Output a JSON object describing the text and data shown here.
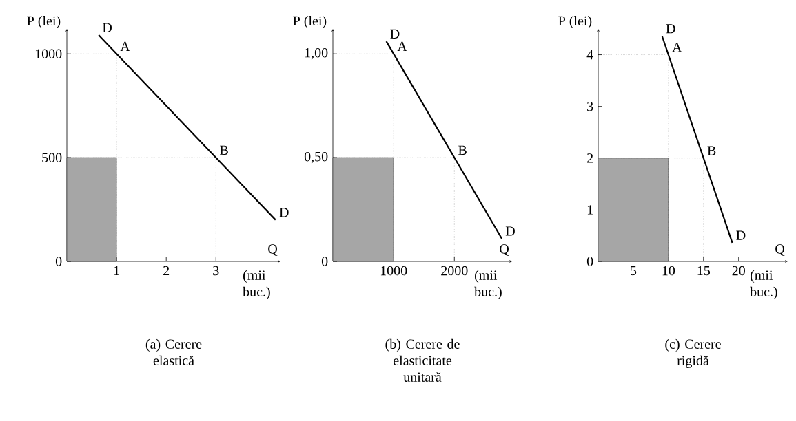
{
  "chart_data": [
    {
      "type": "line",
      "title": "(a) Cerere elastică",
      "xlabel": "(mii buc.)",
      "ylabel": "P (lei)",
      "xlim": [
        0,
        4.3
      ],
      "ylim": [
        0,
        1120
      ],
      "xticks": [
        1,
        2,
        3
      ],
      "yticks": [
        0,
        500,
        1000
      ],
      "grid": false,
      "marker": "none",
      "series": [
        {
          "type": "area",
          "color": "#a6a6a6",
          "x": [
            0,
            1
          ],
          "values": [
            500,
            500
          ]
        },
        {
          "color": "#000000",
          "line_style": "dotted",
          "x": [
            0,
            1,
            1
          ],
          "values": [
            1000,
            1000,
            0
          ]
        },
        {
          "color": "#000000",
          "line_style": "dotted",
          "x": [
            0,
            3,
            3
          ],
          "values": [
            500,
            500,
            0
          ]
        },
        {
          "color": "#000000",
          "line_style": "solid",
          "x": [
            0.64,
            4.2
          ],
          "values": [
            1090,
            200
          ]
        }
      ],
      "annotations": [
        {
          "text": "D",
          "x": 0.64,
          "y": 1090
        },
        {
          "text": "A",
          "x": 1,
          "y": 1000
        },
        {
          "text": "B",
          "x": 3,
          "y": 500
        },
        {
          "text": "D",
          "x": 4.2,
          "y": 200
        },
        "Q"
      ]
    },
    {
      "type": "line",
      "title": "(b) Cerere de elasticitate unitară",
      "xlabel": "(mii buc.)",
      "ylabel": "P (lei)",
      "xlim": [
        0,
        2950
      ],
      "ylim": [
        0,
        1.12
      ],
      "xticks": [
        1000,
        2000
      ],
      "yticks": [
        0,
        {
          "value": 0.5,
          "label": "0,50"
        },
        {
          "value": 1,
          "label": "1,00"
        }
      ],
      "grid": false,
      "marker": "none",
      "series": [
        {
          "type": "area",
          "color": "#a6a6a6",
          "x": [
            0,
            1000
          ],
          "values": [
            0.5,
            0.5
          ]
        },
        {
          "color": "#000000",
          "line_style": "dotted",
          "x": [
            0,
            1000,
            1000
          ],
          "values": [
            1,
            1,
            0
          ]
        },
        {
          "color": "#000000",
          "line_style": "dotted",
          "x": [
            0,
            2000,
            2000
          ],
          "values": [
            0.5,
            0.5,
            0
          ]
        },
        {
          "color": "#000000",
          "line_style": "solid",
          "x": [
            880,
            2780
          ],
          "values": [
            1.06,
            0.11
          ]
        }
      ],
      "annotations": [
        {
          "text": "D",
          "x": 880,
          "y": 1.06
        },
        {
          "text": "A",
          "x": 1000,
          "y": 1
        },
        {
          "text": "B",
          "x": 2000,
          "y": 0.5
        },
        {
          "text": "D",
          "x": 2780,
          "y": 0.11
        },
        "Q"
      ]
    },
    {
      "type": "line",
      "title": "(c) Cerere rigidă",
      "xlabel": "(mii buc.)",
      "ylabel": "P (lei)",
      "xlim": [
        0,
        27
      ],
      "ylim": [
        0,
        4.5
      ],
      "xticks": [
        5,
        10,
        15,
        20
      ],
      "yticks": [
        0,
        1,
        2,
        3,
        4
      ],
      "grid": false,
      "marker": "none",
      "series": [
        {
          "type": "area",
          "color": "#a6a6a6",
          "x": [
            0,
            10
          ],
          "values": [
            2,
            2
          ]
        },
        {
          "color": "#000000",
          "line_style": "dotted",
          "x": [
            0,
            10,
            10
          ],
          "values": [
            4,
            4,
            0
          ]
        },
        {
          "color": "#000000",
          "line_style": "dotted",
          "x": [
            0,
            15,
            15
          ],
          "values": [
            2,
            2,
            0
          ]
        },
        {
          "color": "#000000",
          "line_style": "solid",
          "x": [
            9.1,
            19.1
          ],
          "values": [
            4.36,
            0.36
          ]
        }
      ],
      "annotations": [
        {
          "text": "D",
          "x": 9.1,
          "y": 4.36
        },
        {
          "text": "A",
          "x": 10,
          "y": 4
        },
        {
          "text": "B",
          "x": 15,
          "y": 2
        },
        {
          "text": "D",
          "x": 19.1,
          "y": 0.36
        },
        "Q"
      ]
    }
  ]
}
